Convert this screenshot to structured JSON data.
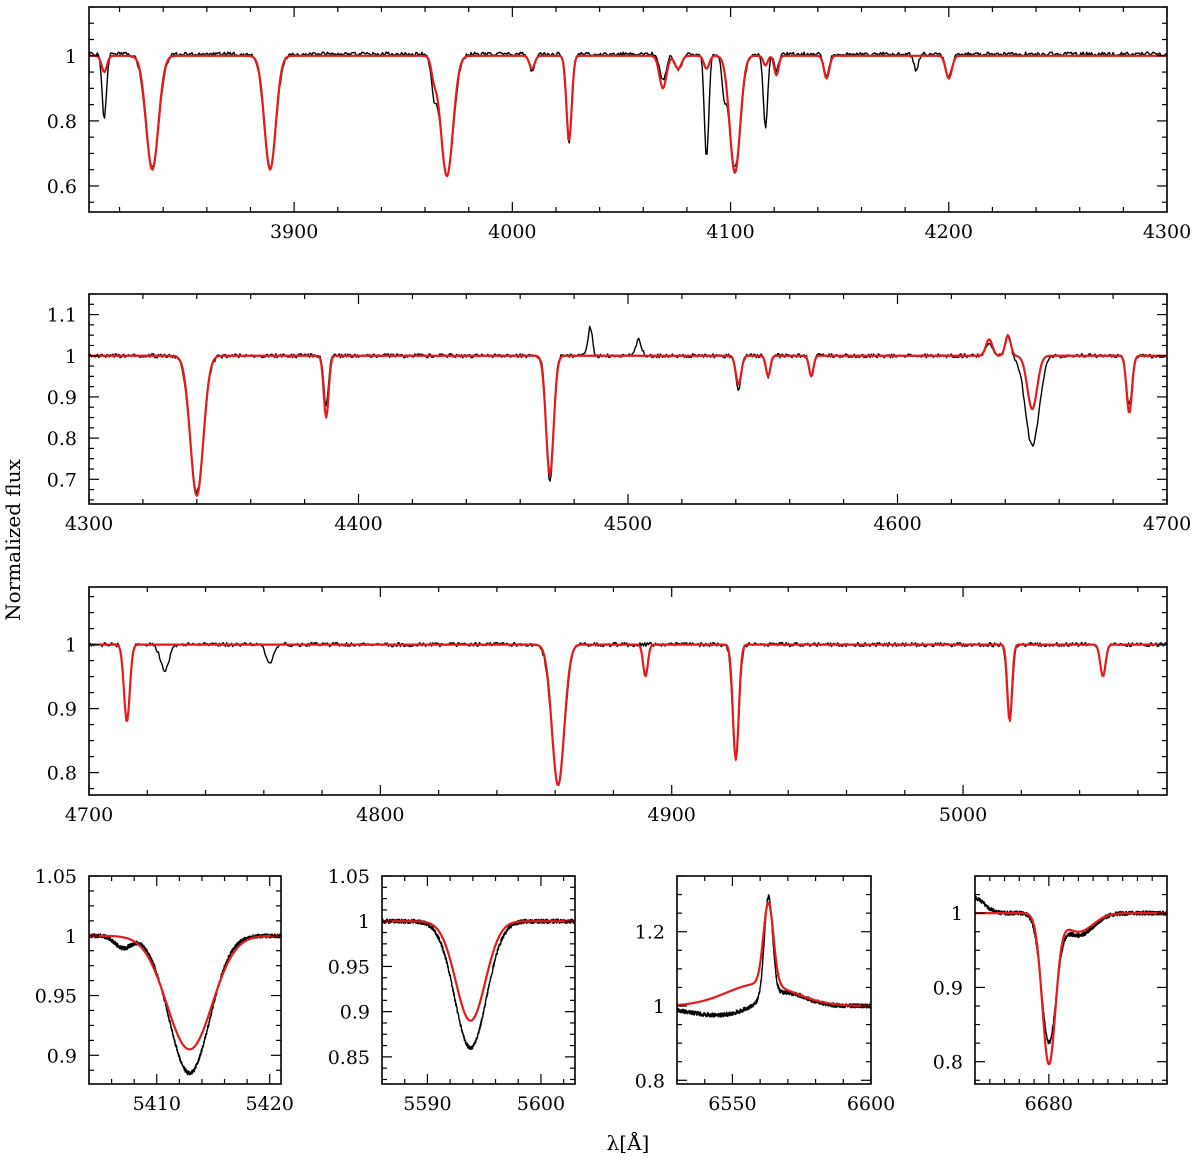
{
  "figure": {
    "ylabel": "Normalized flux",
    "xlabel": "λ[Å]"
  },
  "colors": {
    "observed": "#000000",
    "model": "#e41a1c"
  },
  "chart_data": [
    {
      "type": "line",
      "xlim": [
        3806,
        4300
      ],
      "ylim": [
        0.52,
        1.15
      ],
      "xticks": [
        3900,
        4000,
        4100,
        4200,
        4300
      ],
      "yticks": [
        0.6,
        0.8,
        1
      ],
      "series": [
        {
          "role": "observed",
          "continuum": 1.005,
          "lines": [
            [
              3813,
              0.2,
              1.0
            ],
            [
              3835,
              0.35,
              3.0
            ],
            [
              3889,
              0.35,
              2.8
            ],
            [
              3964,
              0.09,
              1.2
            ],
            [
              3970,
              0.37,
              3.0
            ],
            [
              4009,
              0.05,
              1.2
            ],
            [
              4026,
              0.27,
              1.3
            ],
            [
              4069,
              0.08,
              1.5
            ],
            [
              4076,
              0.05,
              1.5
            ],
            [
              4089,
              0.32,
              1.0
            ],
            [
              4097,
              0.09,
              0.9
            ],
            [
              4102,
              0.35,
              2.6
            ],
            [
              4116,
              0.23,
              1.0
            ],
            [
              4121,
              0.05,
              1.0
            ],
            [
              4144,
              0.07,
              1.2
            ],
            [
              4185,
              0.05,
              1.0
            ],
            [
              4200,
              0.07,
              1.5
            ]
          ]
        },
        {
          "role": "model",
          "continuum": 1.0,
          "lines": [
            [
              3813,
              0.05,
              1.2
            ],
            [
              3835,
              0.35,
              2.8
            ],
            [
              3889,
              0.35,
              2.6
            ],
            [
              3964,
              0.05,
              1.2
            ],
            [
              3970,
              0.37,
              2.8
            ],
            [
              4009,
              0.04,
              1.2
            ],
            [
              4026,
              0.26,
              1.2
            ],
            [
              4069,
              0.1,
              1.6
            ],
            [
              4076,
              0.04,
              1.5
            ],
            [
              4089,
              0.04,
              1.2
            ],
            [
              4102,
              0.36,
              2.4
            ],
            [
              4116,
              0.03,
              1.0
            ],
            [
              4121,
              0.06,
              1.0
            ],
            [
              4144,
              0.07,
              1.2
            ],
            [
              4200,
              0.07,
              1.4
            ]
          ]
        }
      ]
    },
    {
      "type": "line",
      "xlim": [
        4300,
        4700
      ],
      "ylim": [
        0.64,
        1.15
      ],
      "xticks": [
        4300,
        4400,
        4500,
        4600,
        4700
      ],
      "yticks": [
        0.7,
        0.8,
        0.9,
        1,
        1.1
      ],
      "series": [
        {
          "role": "observed",
          "continuum": 1.0,
          "lines": [
            [
              4340,
              0.33,
              2.5
            ],
            [
              4388,
              0.12,
              0.9
            ],
            [
              4471,
              0.31,
              1.3
            ],
            [
              4486,
              -0.07,
              0.8
            ],
            [
              4504,
              -0.04,
              1.0
            ],
            [
              4541,
              0.08,
              1.0
            ],
            [
              4552,
              0.05,
              0.8
            ],
            [
              4568,
              0.05,
              0.8
            ],
            [
              4634,
              -0.03,
              1.2
            ],
            [
              4641,
              -0.05,
              1.0
            ],
            [
              4650,
              0.22,
              2.5
            ],
            [
              4686,
              0.12,
              1.0
            ]
          ]
        },
        {
          "role": "model",
          "continuum": 1.0,
          "lines": [
            [
              4340,
              0.34,
              2.4
            ],
            [
              4388,
              0.15,
              0.9
            ],
            [
              4471,
              0.29,
              1.4
            ],
            [
              4541,
              0.07,
              1.0
            ],
            [
              4552,
              0.05,
              0.8
            ],
            [
              4568,
              0.05,
              0.8
            ],
            [
              4634,
              -0.04,
              1.2
            ],
            [
              4641,
              -0.05,
              1.0
            ],
            [
              4650,
              0.13,
              1.8
            ],
            [
              4686,
              0.14,
              1.0
            ]
          ]
        }
      ]
    },
    {
      "type": "line",
      "xlim": [
        4700,
        5070
      ],
      "ylim": [
        0.765,
        1.09
      ],
      "xticks": [
        4700,
        4800,
        4900,
        5000
      ],
      "yticks": [
        0.8,
        0.9,
        1
      ],
      "series": [
        {
          "role": "observed",
          "continuum": 1.0,
          "lines": [
            [
              4713,
              0.12,
              1.0
            ],
            [
              4726,
              0.04,
              1.5
            ],
            [
              4762,
              0.03,
              1.2
            ],
            [
              4861,
              0.22,
              2.2
            ],
            [
              4922,
              0.18,
              1.1
            ],
            [
              5016,
              0.12,
              0.9
            ],
            [
              5048,
              0.05,
              0.9
            ]
          ]
        },
        {
          "role": "model",
          "continuum": 1.0,
          "lines": [
            [
              4713,
              0.12,
              1.0
            ],
            [
              4861,
              0.22,
              2.1
            ],
            [
              4891,
              0.05,
              0.8
            ],
            [
              4922,
              0.18,
              1.0
            ],
            [
              5016,
              0.12,
              0.8
            ],
            [
              5048,
              0.05,
              0.9
            ]
          ]
        }
      ]
    },
    {
      "type": "line",
      "xlim": [
        5404,
        5421
      ],
      "ylim": [
        0.876,
        1.05
      ],
      "xticks": [
        5410,
        5420
      ],
      "yticks": [
        0.9,
        0.95,
        1,
        1.05
      ],
      "series": [
        {
          "role": "observed",
          "continuum": 1.0,
          "lines": [
            [
              5407,
              0.01,
              0.7
            ],
            [
              5412.9,
              0.115,
              1.8
            ]
          ]
        },
        {
          "role": "model",
          "continuum": 1.0,
          "lines": [
            [
              5412.9,
              0.095,
              2.0
            ]
          ]
        }
      ]
    },
    {
      "type": "line",
      "xlim": [
        5586,
        5603
      ],
      "ylim": [
        0.82,
        1.05
      ],
      "xticks": [
        5590,
        5600
      ],
      "yticks": [
        0.85,
        0.9,
        0.95,
        1,
        1.05
      ],
      "series": [
        {
          "role": "observed",
          "continuum": 1.0,
          "lines": [
            [
              5593.8,
              0.14,
              1.4
            ]
          ]
        },
        {
          "role": "model",
          "continuum": 1.0,
          "lines": [
            [
              5593.8,
              0.11,
              1.3
            ]
          ]
        }
      ]
    },
    {
      "type": "line",
      "xlim": [
        6530,
        6600
      ],
      "ylim": [
        0.79,
        1.35
      ],
      "xticks": [
        6550,
        6600
      ],
      "yticks": [
        0.8,
        1,
        1.2
      ],
      "series": [
        {
          "role": "observed",
          "continuum": 1.0,
          "lines": [
            [
              6563,
              -0.27,
              1.5
            ],
            [
              6568,
              -0.04,
              8.0
            ],
            [
              6545,
              0.025,
              12.0
            ]
          ]
        },
        {
          "role": "model",
          "continuum": 1.0,
          "lines": [
            [
              6563,
              -0.22,
              1.8
            ],
            [
              6560,
              -0.06,
              12.0
            ]
          ]
        }
      ]
    },
    {
      "type": "line",
      "xlim": [
        6670,
        6696
      ],
      "ylim": [
        0.77,
        1.05
      ],
      "xticks": [
        6680
      ],
      "yticks": [
        0.8,
        0.9,
        1
      ],
      "series": [
        {
          "role": "observed",
          "continuum": 1.0,
          "lines": [
            [
              6670,
              -0.02,
              1.3
            ],
            [
              6680,
              0.17,
              1.0
            ],
            [
              6684,
              0.03,
              2.0
            ]
          ]
        },
        {
          "role": "model",
          "continuum": 1.0,
          "lines": [
            [
              6680,
              0.2,
              0.9
            ],
            [
              6684,
              0.025,
              2.0
            ]
          ]
        }
      ]
    }
  ]
}
